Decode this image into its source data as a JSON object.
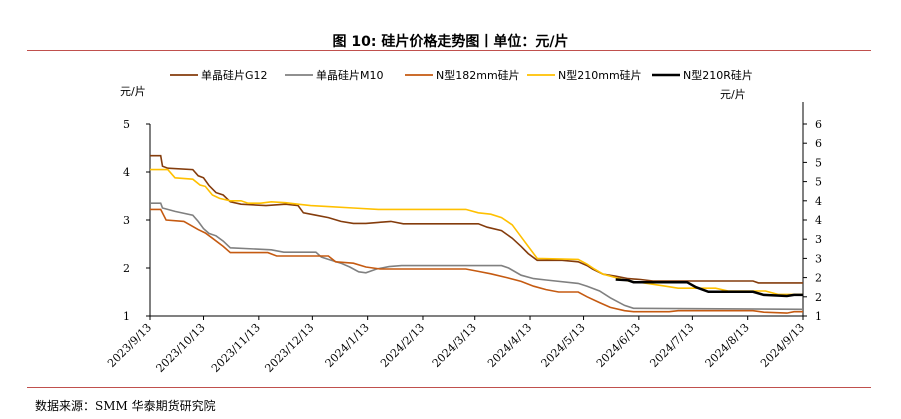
{
  "header": {
    "title": "图 10: 硅片价格走势图丨单位：元/片"
  },
  "footer": {
    "source": "数据来源：SMM  华泰期货研究院"
  },
  "chart_data": {
    "type": "line",
    "title": "",
    "y_left_label": "元/片",
    "y_right_label": "元/片",
    "y_left_lim": [
      1,
      5
    ],
    "y_left_ticks": [
      "1",
      "2",
      "3",
      "4",
      "5"
    ],
    "y_right_lim": [
      1,
      6
    ],
    "y_right_ticks": [
      "1",
      "2",
      "2",
      "3",
      "3",
      "4",
      "4",
      "5",
      "5",
      "6",
      "6"
    ],
    "x_lim": [
      "2023-09-13",
      "2024-09-13"
    ],
    "x_ticks": [
      "2023/9/13",
      "2023/10/13",
      "2023/11/13",
      "2023/12/13",
      "2024/1/13",
      "2024/2/13",
      "2024/3/13",
      "2024/4/13",
      "2024/5/13",
      "2024/6/13",
      "2024/7/13",
      "2024/8/13",
      "2024/9/13"
    ],
    "grid": false,
    "legend_position": "top",
    "series": [
      {
        "name": "单晶硅片G12",
        "color": "#843c0c",
        "axis": "left",
        "points": [
          [
            "2023-09-13",
            4.34
          ],
          [
            "2023-09-19",
            4.34
          ],
          [
            "2023-09-20",
            4.12
          ],
          [
            "2023-09-23",
            4.08
          ],
          [
            "2023-10-07",
            4.05
          ],
          [
            "2023-10-10",
            3.92
          ],
          [
            "2023-10-13",
            3.88
          ],
          [
            "2023-10-16",
            3.72
          ],
          [
            "2023-10-20",
            3.57
          ],
          [
            "2023-10-24",
            3.52
          ],
          [
            "2023-10-28",
            3.38
          ],
          [
            "2023-11-03",
            3.33
          ],
          [
            "2023-11-17",
            3.3
          ],
          [
            "2023-11-28",
            3.33
          ],
          [
            "2023-12-05",
            3.3
          ],
          [
            "2023-12-08",
            3.15
          ],
          [
            "2023-12-15",
            3.1
          ],
          [
            "2023-12-22",
            3.05
          ],
          [
            "2023-12-29",
            2.97
          ],
          [
            "2024-01-05",
            2.93
          ],
          [
            "2024-01-12",
            2.93
          ],
          [
            "2024-01-19",
            2.95
          ],
          [
            "2024-01-26",
            2.97
          ],
          [
            "2024-02-02",
            2.92
          ],
          [
            "2024-03-15",
            2.92
          ],
          [
            "2024-03-20",
            2.85
          ],
          [
            "2024-03-28",
            2.78
          ],
          [
            "2024-04-03",
            2.62
          ],
          [
            "2024-04-08",
            2.45
          ],
          [
            "2024-04-12",
            2.3
          ],
          [
            "2024-04-17",
            2.16
          ],
          [
            "2024-05-01",
            2.16
          ],
          [
            "2024-05-10",
            2.13
          ],
          [
            "2024-05-15",
            2.05
          ],
          [
            "2024-05-18",
            1.98
          ],
          [
            "2024-05-24",
            1.87
          ],
          [
            "2024-05-31",
            1.83
          ],
          [
            "2024-06-07",
            1.78
          ],
          [
            "2024-06-14",
            1.76
          ],
          [
            "2024-06-21",
            1.73
          ],
          [
            "2024-08-16",
            1.73
          ],
          [
            "2024-08-19",
            1.69
          ],
          [
            "2024-09-13",
            1.69
          ]
        ]
      },
      {
        "name": "单晶硅片M10",
        "color": "#808080",
        "axis": "left",
        "points": [
          [
            "2023-09-13",
            3.35
          ],
          [
            "2023-09-19",
            3.35
          ],
          [
            "2023-09-20",
            3.25
          ],
          [
            "2023-09-27",
            3.18
          ],
          [
            "2023-10-07",
            3.1
          ],
          [
            "2023-10-10",
            2.97
          ],
          [
            "2023-10-13",
            2.82
          ],
          [
            "2023-10-16",
            2.72
          ],
          [
            "2023-10-20",
            2.67
          ],
          [
            "2023-10-24",
            2.56
          ],
          [
            "2023-10-28",
            2.42
          ],
          [
            "2023-11-20",
            2.38
          ],
          [
            "2023-11-27",
            2.33
          ],
          [
            "2023-12-15",
            2.33
          ],
          [
            "2023-12-18",
            2.23
          ],
          [
            "2023-12-22",
            2.18
          ],
          [
            "2023-12-29",
            2.1
          ],
          [
            "2024-01-03",
            2.02
          ],
          [
            "2024-01-08",
            1.92
          ],
          [
            "2024-01-12",
            1.9
          ],
          [
            "2024-01-18",
            1.98
          ],
          [
            "2024-01-25",
            2.03
          ],
          [
            "2024-02-01",
            2.05
          ],
          [
            "2024-03-28",
            2.05
          ],
          [
            "2024-04-01",
            2.0
          ],
          [
            "2024-04-08",
            1.85
          ],
          [
            "2024-04-15",
            1.78
          ],
          [
            "2024-04-22",
            1.75
          ],
          [
            "2024-05-10",
            1.68
          ],
          [
            "2024-05-15",
            1.62
          ],
          [
            "2024-05-22",
            1.52
          ],
          [
            "2024-05-28",
            1.38
          ],
          [
            "2024-06-05",
            1.22
          ],
          [
            "2024-06-10",
            1.16
          ],
          [
            "2024-09-13",
            1.14
          ]
        ]
      },
      {
        "name": "N型182mm硅片",
        "color": "#c55a11",
        "axis": "left",
        "points": [
          [
            "2023-09-13",
            3.22
          ],
          [
            "2023-09-19",
            3.22
          ],
          [
            "2023-09-22",
            3.0
          ],
          [
            "2023-10-02",
            2.97
          ],
          [
            "2023-10-10",
            2.8
          ],
          [
            "2023-10-14",
            2.73
          ],
          [
            "2023-10-18",
            2.62
          ],
          [
            "2023-10-24",
            2.45
          ],
          [
            "2023-10-28",
            2.32
          ],
          [
            "2023-11-18",
            2.32
          ],
          [
            "2023-11-23",
            2.25
          ],
          [
            "2023-12-22",
            2.25
          ],
          [
            "2023-12-26",
            2.13
          ],
          [
            "2024-01-05",
            2.1
          ],
          [
            "2024-01-12",
            2.02
          ],
          [
            "2024-01-20",
            1.98
          ],
          [
            "2024-03-08",
            1.98
          ],
          [
            "2024-03-15",
            1.93
          ],
          [
            "2024-03-22",
            1.88
          ],
          [
            "2024-03-31",
            1.8
          ],
          [
            "2024-04-08",
            1.72
          ],
          [
            "2024-04-15",
            1.62
          ],
          [
            "2024-04-22",
            1.55
          ],
          [
            "2024-04-29",
            1.5
          ],
          [
            "2024-05-10",
            1.5
          ],
          [
            "2024-05-15",
            1.4
          ],
          [
            "2024-05-22",
            1.28
          ],
          [
            "2024-05-28",
            1.18
          ],
          [
            "2024-06-05",
            1.11
          ],
          [
            "2024-06-10",
            1.09
          ],
          [
            "2024-06-30",
            1.09
          ],
          [
            "2024-07-05",
            1.11
          ],
          [
            "2024-08-16",
            1.11
          ],
          [
            "2024-08-22",
            1.08
          ],
          [
            "2024-09-04",
            1.06
          ],
          [
            "2024-09-08",
            1.09
          ],
          [
            "2024-09-13",
            1.09
          ]
        ]
      },
      {
        "name": "N型210mm硅片",
        "color": "#ffc000",
        "axis": "left",
        "points": [
          [
            "2023-09-13",
            4.05
          ],
          [
            "2023-09-23",
            4.05
          ],
          [
            "2023-09-27",
            3.88
          ],
          [
            "2023-10-07",
            3.85
          ],
          [
            "2023-10-11",
            3.73
          ],
          [
            "2023-10-14",
            3.7
          ],
          [
            "2023-10-18",
            3.52
          ],
          [
            "2023-10-22",
            3.45
          ],
          [
            "2023-10-28",
            3.4
          ],
          [
            "2023-11-03",
            3.4
          ],
          [
            "2023-11-07",
            3.35
          ],
          [
            "2023-11-14",
            3.35
          ],
          [
            "2023-11-20",
            3.38
          ],
          [
            "2023-11-28",
            3.36
          ],
          [
            "2023-12-05",
            3.33
          ],
          [
            "2023-12-12",
            3.3
          ],
          [
            "2023-12-22",
            3.28
          ],
          [
            "2024-01-05",
            3.25
          ],
          [
            "2024-01-19",
            3.22
          ],
          [
            "2024-03-08",
            3.22
          ],
          [
            "2024-03-15",
            3.15
          ],
          [
            "2024-03-22",
            3.12
          ],
          [
            "2024-03-28",
            3.05
          ],
          [
            "2024-04-03",
            2.9
          ],
          [
            "2024-04-08",
            2.65
          ],
          [
            "2024-04-12",
            2.45
          ],
          [
            "2024-04-17",
            2.2
          ],
          [
            "2024-05-10",
            2.18
          ],
          [
            "2024-05-15",
            2.08
          ],
          [
            "2024-05-19",
            1.98
          ],
          [
            "2024-05-24",
            1.87
          ],
          [
            "2024-05-31",
            1.8
          ],
          [
            "2024-06-07",
            1.73
          ],
          [
            "2024-06-14",
            1.7
          ],
          [
            "2024-06-21",
            1.66
          ],
          [
            "2024-06-28",
            1.62
          ],
          [
            "2024-07-05",
            1.58
          ],
          [
            "2024-07-26",
            1.58
          ],
          [
            "2024-08-02",
            1.52
          ],
          [
            "2024-08-23",
            1.52
          ],
          [
            "2024-08-30",
            1.45
          ],
          [
            "2024-09-13",
            1.45
          ]
        ]
      },
      {
        "name": "N型210R硅片",
        "color": "#000000",
        "axis": "right",
        "points": [
          [
            "2024-05-31",
            1.95
          ],
          [
            "2024-06-07",
            1.93
          ],
          [
            "2024-06-10",
            1.88
          ],
          [
            "2024-07-10",
            1.88
          ],
          [
            "2024-07-15",
            1.75
          ],
          [
            "2024-07-22",
            1.63
          ],
          [
            "2024-08-16",
            1.63
          ],
          [
            "2024-08-22",
            1.55
          ],
          [
            "2024-09-04",
            1.52
          ],
          [
            "2024-09-08",
            1.55
          ],
          [
            "2024-09-13",
            1.55
          ]
        ]
      }
    ]
  }
}
